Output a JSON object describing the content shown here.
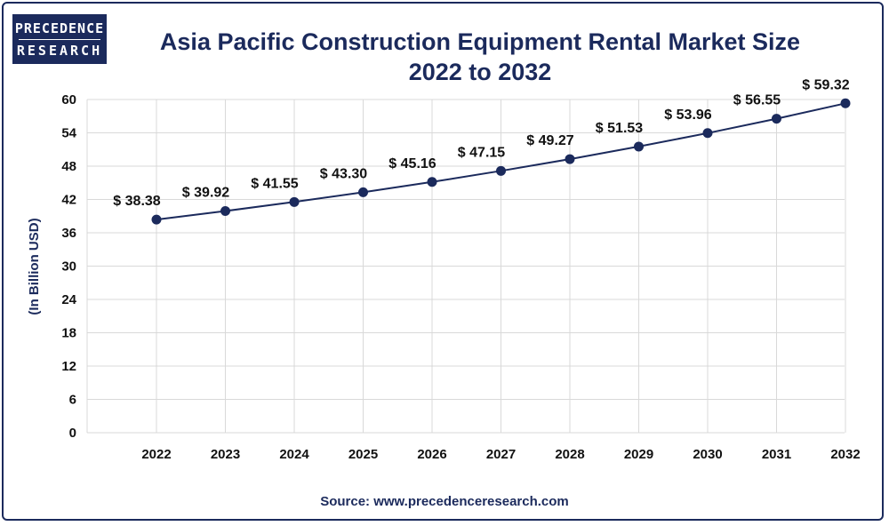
{
  "logo": {
    "line1": "PRECEDENCE",
    "line2": "RESEARCH"
  },
  "chart_data": {
    "type": "line",
    "title_line1": "Asia Pacific Construction Equipment Rental Market Size",
    "title_line2": "2022 to 2032",
    "ylabel": "(In Billion USD)",
    "xlabel": "",
    "categories": [
      "2022",
      "2023",
      "2024",
      "2025",
      "2026",
      "2027",
      "2028",
      "2029",
      "2030",
      "2031",
      "2032"
    ],
    "values": [
      38.38,
      39.92,
      41.55,
      43.3,
      45.16,
      47.15,
      49.27,
      51.53,
      53.96,
      56.55,
      59.32
    ],
    "data_labels": [
      "$ 38.38",
      "$ 39.92",
      "$ 41.55",
      "$ 43.30",
      "$ 45.16",
      "$ 47.15",
      "$ 49.27",
      "$ 51.53",
      "$ 53.96",
      "$ 56.55",
      "$ 59.32"
    ],
    "yticks": [
      0,
      6,
      12,
      18,
      24,
      30,
      36,
      42,
      48,
      54,
      60
    ],
    "ylim": [
      0,
      60
    ],
    "grid": true,
    "line_color": "#1b2a5c",
    "marker_color": "#1b2a5c",
    "source": "Source: www.precedenceresearch.com"
  }
}
